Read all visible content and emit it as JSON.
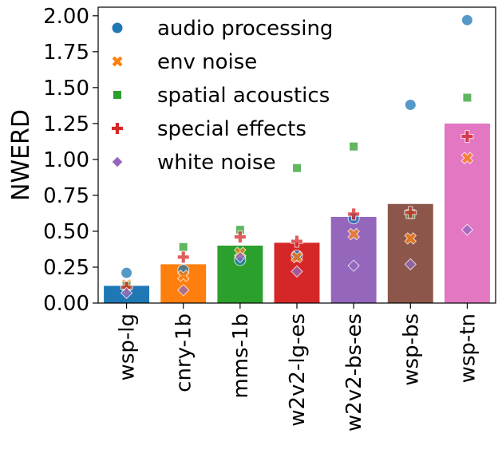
{
  "chart_data": {
    "type": "bar",
    "title": "",
    "xlabel": "",
    "ylabel": "NWERD",
    "ylim": [
      0,
      2.06
    ],
    "yticks": [
      "0.00",
      "0.25",
      "0.50",
      "0.75",
      "1.00",
      "1.25",
      "1.50",
      "1.75",
      "2.00"
    ],
    "ytick_values": [
      0,
      0.25,
      0.5,
      0.75,
      1.0,
      1.25,
      1.5,
      1.75,
      2.0
    ],
    "categories": [
      "wsp-lg",
      "cnry-1b",
      "mms-1b",
      "w2v2-lg-es",
      "w2v2-bs-es",
      "wsp-bs",
      "wsp-tn"
    ],
    "bar_values": [
      0.12,
      0.27,
      0.4,
      0.42,
      0.6,
      0.69,
      1.25
    ],
    "bar_colors": [
      "#1f77b4",
      "#ff7f0e",
      "#2ca02c",
      "#d62728",
      "#9467bd",
      "#8c564b",
      "#e377c2"
    ],
    "series": [
      {
        "name": "audio processing",
        "marker": "circle",
        "color": "#1f77b4",
        "values": [
          0.21,
          0.23,
          0.3,
          0.33,
          0.59,
          1.38,
          1.97
        ]
      },
      {
        "name": "env noise",
        "marker": "x",
        "color": "#ff7f0e",
        "values": [
          0.13,
          0.19,
          0.35,
          0.32,
          0.48,
          0.45,
          1.01
        ]
      },
      {
        "name": "spatial acoustics",
        "marker": "square",
        "color": "#2ca02c",
        "values": [
          0.12,
          0.39,
          0.51,
          0.94,
          1.09,
          0.62,
          1.43
        ]
      },
      {
        "name": "special effects",
        "marker": "plus",
        "color": "#d62728",
        "values": [
          0.11,
          0.32,
          0.46,
          0.43,
          0.62,
          0.63,
          1.16
        ]
      },
      {
        "name": "white noise",
        "marker": "diamond",
        "color": "#9467bd",
        "values": [
          0.07,
          0.09,
          0.32,
          0.22,
          0.26,
          0.27,
          0.51
        ]
      }
    ],
    "legend_position": "top-left"
  }
}
